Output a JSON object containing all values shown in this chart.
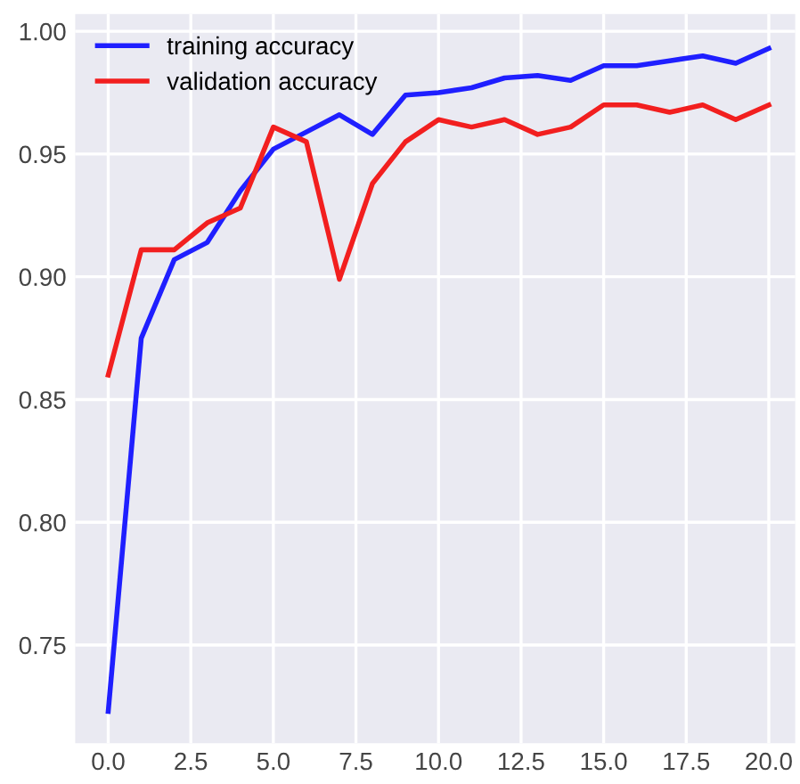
{
  "chart_data": {
    "type": "line",
    "x": [
      0,
      1,
      2,
      3,
      4,
      5,
      6,
      7,
      8,
      9,
      10,
      11,
      12,
      13,
      14,
      15,
      16,
      17,
      18,
      19,
      20
    ],
    "series": [
      {
        "name": "training accuracy",
        "color": "#1f1fff",
        "values": [
          0.723,
          0.875,
          0.907,
          0.914,
          0.935,
          0.952,
          0.959,
          0.966,
          0.958,
          0.974,
          0.975,
          0.977,
          0.981,
          0.982,
          0.98,
          0.986,
          0.986,
          0.988,
          0.99,
          0.987,
          0.993
        ]
      },
      {
        "name": "validation accuracy",
        "color": "#f21f1f",
        "values": [
          0.86,
          0.911,
          0.911,
          0.922,
          0.928,
          0.961,
          0.955,
          0.899,
          0.938,
          0.955,
          0.964,
          0.961,
          0.964,
          0.958,
          0.961,
          0.97,
          0.97,
          0.967,
          0.97,
          0.964,
          0.97
        ]
      }
    ],
    "xlim": [
      -1.0,
      20.8
    ],
    "ylim": [
      0.71,
      1.007
    ],
    "xticks": [
      {
        "value": 0,
        "label": "0.0"
      },
      {
        "value": 2.5,
        "label": "2.5"
      },
      {
        "value": 5,
        "label": "5.0"
      },
      {
        "value": 7.5,
        "label": "7.5"
      },
      {
        "value": 10,
        "label": "10.0"
      },
      {
        "value": 12.5,
        "label": "12.5"
      },
      {
        "value": 15,
        "label": "15.0"
      },
      {
        "value": 17.5,
        "label": "17.5"
      },
      {
        "value": 20,
        "label": "20.0"
      }
    ],
    "yticks": [
      {
        "value": 0.75,
        "label": "0.75"
      },
      {
        "value": 0.8,
        "label": "0.80"
      },
      {
        "value": 0.85,
        "label": "0.85"
      },
      {
        "value": 0.9,
        "label": "0.90"
      },
      {
        "value": 0.95,
        "label": "0.95"
      },
      {
        "value": 1.0,
        "label": "1.00"
      }
    ],
    "grid": true,
    "legend": "top left",
    "line_style": "solid"
  }
}
